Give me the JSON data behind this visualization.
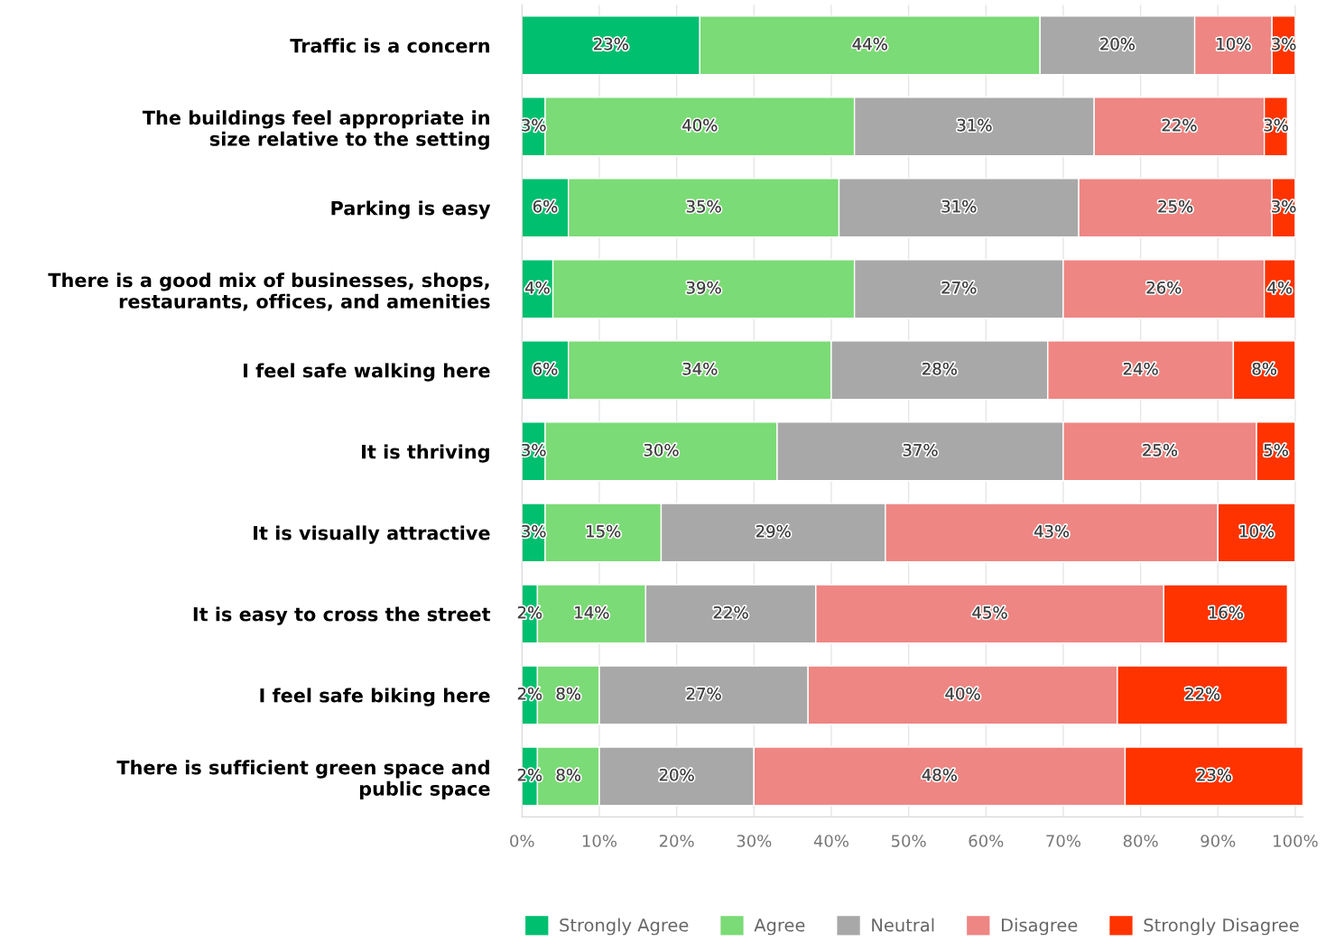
{
  "chart_data": {
    "type": "bar",
    "orientation": "horizontal",
    "stacked": true,
    "grid": "x",
    "legend": "bottom",
    "categories": [
      "Traffic is a concern",
      "The buildings feel appropriate in\nsize relative to the setting",
      "Parking is easy",
      "There is a good mix of businesses, shops,\nrestaurants, offices, and amenities",
      "I feel safe walking here",
      "It is thriving",
      "It is visually attractive",
      "It is easy to cross the street",
      "I feel safe biking here",
      "There is sufficient green space and\npublic space"
    ],
    "series": [
      {
        "name": "Strongly Agree",
        "color": "#00bf6f",
        "values": [
          23,
          3,
          6,
          4,
          6,
          3,
          3,
          2,
          2,
          2
        ],
        "value_labels": [
          "23%",
          "3%",
          "6%",
          "4%",
          "6%",
          "3%",
          "3%",
          "2%",
          "2%",
          "2%"
        ]
      },
      {
        "name": "Agree",
        "color": "#7bdb76",
        "values": [
          44,
          40,
          35,
          39,
          34,
          30,
          15,
          14,
          8,
          8
        ],
        "value_labels": [
          "44%",
          "40%",
          "35%",
          "39%",
          "34%",
          "30%",
          "15%",
          "14%",
          "8%",
          "8%"
        ]
      },
      {
        "name": "Neutral",
        "color": "#a8a8a8",
        "values": [
          20,
          31,
          31,
          27,
          28,
          37,
          29,
          22,
          27,
          20
        ],
        "value_labels": [
          "20%",
          "31%",
          "31%",
          "27%",
          "28%",
          "37%",
          "29%",
          "22%",
          "27%",
          "20%"
        ]
      },
      {
        "name": "Disagree",
        "color": "#ee8683",
        "values": [
          10,
          22,
          25,
          26,
          24,
          25,
          43,
          45,
          40,
          48
        ],
        "value_labels": [
          "10%",
          "22%",
          "25%",
          "26%",
          "24%",
          "25%",
          "43%",
          "45%",
          "40%",
          "48%"
        ]
      },
      {
        "name": "Strongly Disagree",
        "color": "#ff3300",
        "values": [
          3,
          3,
          3,
          4,
          8,
          5,
          10,
          16,
          22,
          23
        ],
        "value_labels": [
          "3%",
          "3%",
          "3%",
          "4%",
          "8%",
          "5%",
          "10%",
          "16%",
          "22%",
          "23%"
        ]
      }
    ],
    "xlim": [
      0,
      101
    ],
    "xticks": [
      {
        "value": 0,
        "label": "0%"
      },
      {
        "value": 10,
        "label": "10%"
      },
      {
        "value": 20,
        "label": "20%"
      },
      {
        "value": 30,
        "label": "30%"
      },
      {
        "value": 40,
        "label": "40%"
      },
      {
        "value": 50,
        "label": "50%"
      },
      {
        "value": 60,
        "label": "60%"
      },
      {
        "value": 70,
        "label": "70%"
      },
      {
        "value": 80,
        "label": "80%"
      },
      {
        "value": 90,
        "label": "90%"
      },
      {
        "value": 100,
        "label": "100%"
      }
    ]
  }
}
